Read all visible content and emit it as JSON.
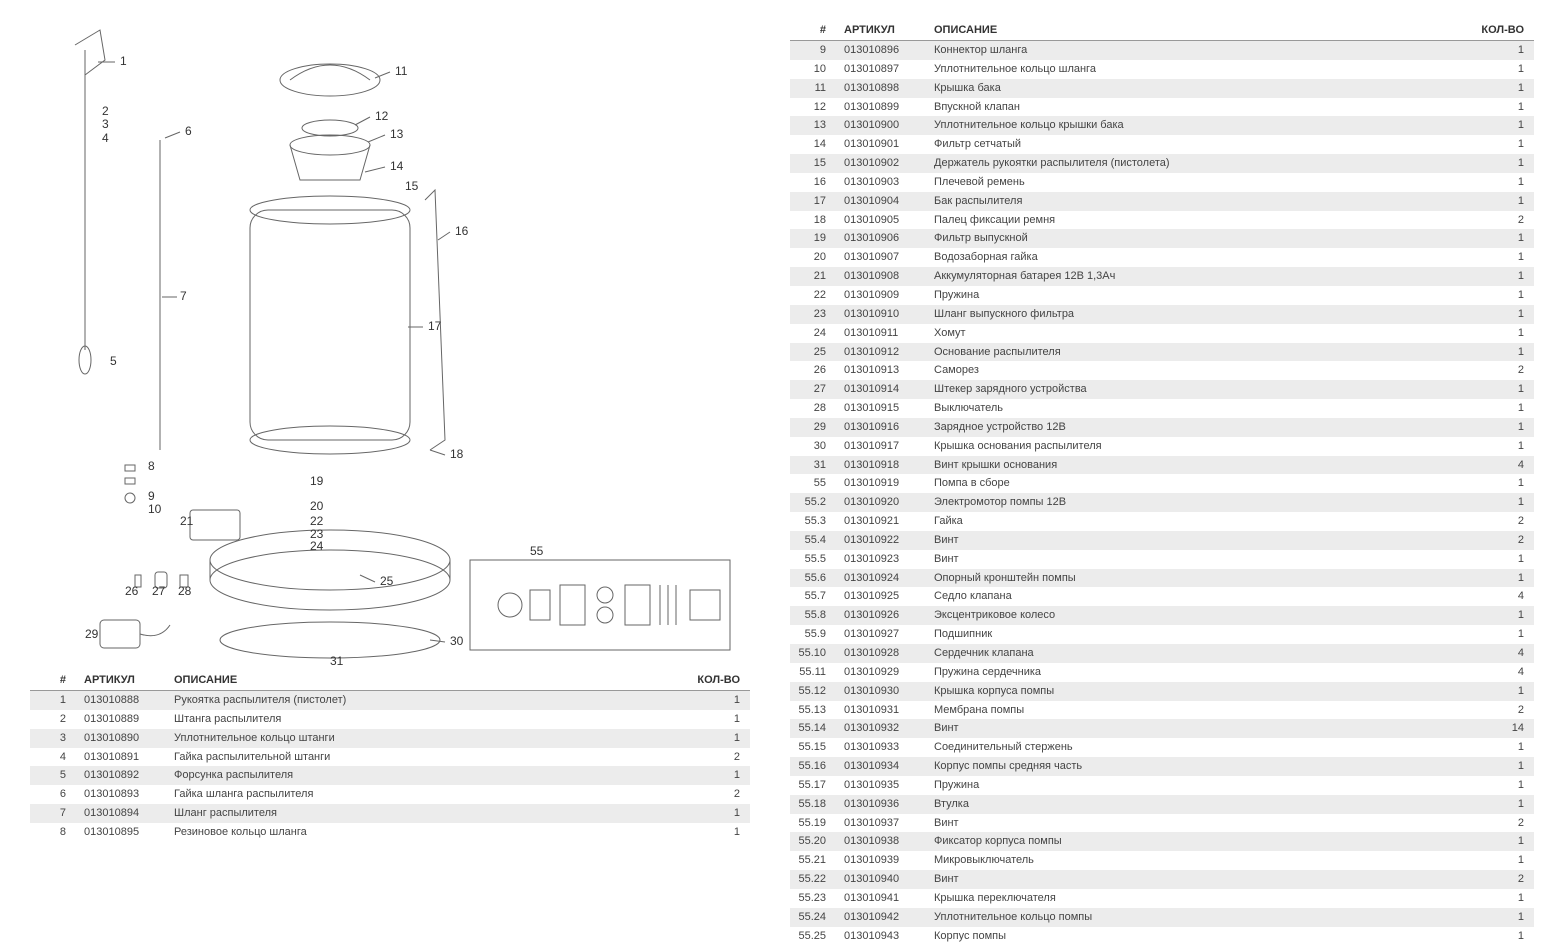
{
  "headers": {
    "num": "#",
    "article": "АРТИКУЛ",
    "description": "ОПИСАНИЕ",
    "qty": "КОЛ-ВО"
  },
  "diagram": {
    "callouts": [
      "1",
      "2",
      "3",
      "4",
      "5",
      "6",
      "7",
      "8",
      "9",
      "10",
      "11",
      "12",
      "13",
      "14",
      "15",
      "16",
      "17",
      "18",
      "19",
      "20",
      "21",
      "22",
      "23",
      "24",
      "25",
      "26",
      "27",
      "28",
      "29",
      "30",
      "31",
      "55"
    ],
    "label_fontsize": 11,
    "line_color": "#666666",
    "line_width": 1,
    "inset_box": {
      "border_color": "#888888",
      "label": "55"
    }
  },
  "styling": {
    "row_odd_bg": "#ececec",
    "row_even_bg": "#ffffff",
    "header_border": "#999999",
    "text_color": "#444444",
    "font_size": 11,
    "col_widths": {
      "num": 48,
      "article": 90,
      "qty": 60
    }
  },
  "left_rows": [
    {
      "n": "1",
      "a": "013010888",
      "d": "Рукоятка распылителя (пистолет)",
      "q": "1"
    },
    {
      "n": "2",
      "a": "013010889",
      "d": "Штанга распылителя",
      "q": "1"
    },
    {
      "n": "3",
      "a": "013010890",
      "d": "Уплотнительное кольцо штанги",
      "q": "1"
    },
    {
      "n": "4",
      "a": "013010891",
      "d": "Гайка распылительной штанги",
      "q": "2"
    },
    {
      "n": "5",
      "a": "013010892",
      "d": "Форсунка распылителя",
      "q": "1"
    },
    {
      "n": "6",
      "a": "013010893",
      "d": "Гайка шланга распылителя",
      "q": "2"
    },
    {
      "n": "7",
      "a": "013010894",
      "d": "Шланг распылителя",
      "q": "1"
    },
    {
      "n": "8",
      "a": "013010895",
      "d": "Резиновое кольцо шланга",
      "q": "1"
    }
  ],
  "right_rows": [
    {
      "n": "9",
      "a": "013010896",
      "d": "Коннектор шланга",
      "q": "1"
    },
    {
      "n": "10",
      "a": "013010897",
      "d": "Уплотнительное кольцо шланга",
      "q": "1"
    },
    {
      "n": "11",
      "a": "013010898",
      "d": "Крышка бака",
      "q": "1"
    },
    {
      "n": "12",
      "a": "013010899",
      "d": "Впускной клапан",
      "q": "1"
    },
    {
      "n": "13",
      "a": "013010900",
      "d": "Уплотнительное кольцо крышки бака",
      "q": "1"
    },
    {
      "n": "14",
      "a": "013010901",
      "d": "Фильтр сетчатый",
      "q": "1"
    },
    {
      "n": "15",
      "a": "013010902",
      "d": "Держатель рукоятки распылителя (пистолета)",
      "q": "1"
    },
    {
      "n": "16",
      "a": "013010903",
      "d": "Плечевой ремень",
      "q": "1"
    },
    {
      "n": "17",
      "a": "013010904",
      "d": "Бак распылителя",
      "q": "1"
    },
    {
      "n": "18",
      "a": "013010905",
      "d": "Палец фиксации ремня",
      "q": "2"
    },
    {
      "n": "19",
      "a": "013010906",
      "d": "Фильтр выпускной",
      "q": "1"
    },
    {
      "n": "20",
      "a": "013010907",
      "d": "Водозаборная гайка",
      "q": "1"
    },
    {
      "n": "21",
      "a": "013010908",
      "d": "Аккумуляторная батарея 12В 1,3Ач",
      "q": "1"
    },
    {
      "n": "22",
      "a": "013010909",
      "d": "Пружина",
      "q": "1"
    },
    {
      "n": "23",
      "a": "013010910",
      "d": "Шланг выпускного фильтра",
      "q": "1"
    },
    {
      "n": "24",
      "a": "013010911",
      "d": "Хомут",
      "q": "1"
    },
    {
      "n": "25",
      "a": "013010912",
      "d": "Основание распылителя",
      "q": "1"
    },
    {
      "n": "26",
      "a": "013010913",
      "d": "Саморез",
      "q": "2"
    },
    {
      "n": "27",
      "a": "013010914",
      "d": "Штекер зарядного устройства",
      "q": "1"
    },
    {
      "n": "28",
      "a": "013010915",
      "d": "Выключатель",
      "q": "1"
    },
    {
      "n": "29",
      "a": "013010916",
      "d": "Зарядное устройство 12В",
      "q": "1"
    },
    {
      "n": "30",
      "a": "013010917",
      "d": "Крышка основания распылителя",
      "q": "1"
    },
    {
      "n": "31",
      "a": "013010918",
      "d": "Винт крышки основания",
      "q": "4"
    },
    {
      "n": "55",
      "a": "013010919",
      "d": "Помпа в сборе",
      "q": "1"
    },
    {
      "n": "55.2",
      "a": "013010920",
      "d": "Электромотор помпы 12В",
      "q": "1"
    },
    {
      "n": "55.3",
      "a": "013010921",
      "d": "Гайка",
      "q": "2"
    },
    {
      "n": "55.4",
      "a": "013010922",
      "d": "Винт",
      "q": "2"
    },
    {
      "n": "55.5",
      "a": "013010923",
      "d": "Винт",
      "q": "1"
    },
    {
      "n": "55.6",
      "a": "013010924",
      "d": "Опорный кронштейн помпы",
      "q": "1"
    },
    {
      "n": "55.7",
      "a": "013010925",
      "d": "Седло клапана",
      "q": "4"
    },
    {
      "n": "55.8",
      "a": "013010926",
      "d": "Эксцентриковое колесо",
      "q": "1"
    },
    {
      "n": "55.9",
      "a": "013010927",
      "d": "Подшипник",
      "q": "1"
    },
    {
      "n": "55.10",
      "a": "013010928",
      "d": "Сердечник клапана",
      "q": "4"
    },
    {
      "n": "55.11",
      "a": "013010929",
      "d": "Пружина сердечника",
      "q": "4"
    },
    {
      "n": "55.12",
      "a": "013010930",
      "d": "Крышка корпуса помпы",
      "q": "1"
    },
    {
      "n": "55.13",
      "a": "013010931",
      "d": "Мембрана помпы",
      "q": "2"
    },
    {
      "n": "55.14",
      "a": "013010932",
      "d": "Винт",
      "q": "14"
    },
    {
      "n": "55.15",
      "a": "013010933",
      "d": "Соединительный стержень",
      "q": "1"
    },
    {
      "n": "55.16",
      "a": "013010934",
      "d": "Корпус помпы средняя часть",
      "q": "1"
    },
    {
      "n": "55.17",
      "a": "013010935",
      "d": "Пружина",
      "q": "1"
    },
    {
      "n": "55.18",
      "a": "013010936",
      "d": "Втулка",
      "q": "1"
    },
    {
      "n": "55.19",
      "a": "013010937",
      "d": "Винт",
      "q": "2"
    },
    {
      "n": "55.20",
      "a": "013010938",
      "d": "Фиксатор корпуса помпы",
      "q": "1"
    },
    {
      "n": "55.21",
      "a": "013010939",
      "d": "Микровыключатель",
      "q": "1"
    },
    {
      "n": "55.22",
      "a": "013010940",
      "d": "Винт",
      "q": "2"
    },
    {
      "n": "55.23",
      "a": "013010941",
      "d": "Крышка переключателя",
      "q": "1"
    },
    {
      "n": "55.24",
      "a": "013010942",
      "d": "Уплотнительное кольцо помпы",
      "q": "1"
    },
    {
      "n": "55.25",
      "a": "013010943",
      "d": "Корпус помпы",
      "q": "1"
    }
  ]
}
